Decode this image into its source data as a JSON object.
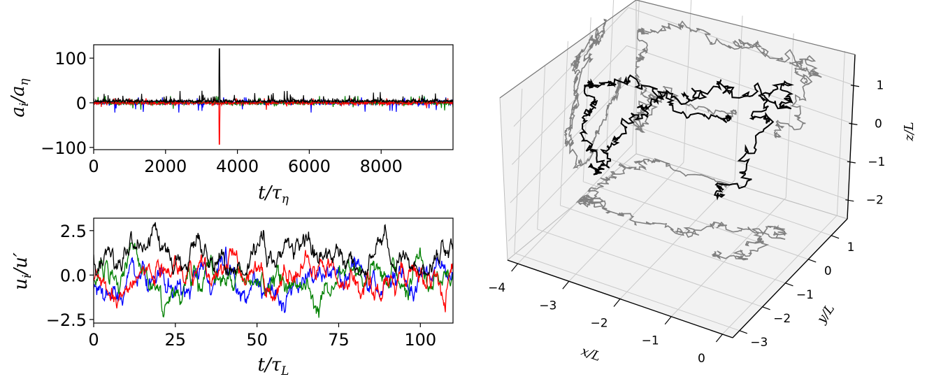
{
  "chart_data": [
    {
      "type": "line",
      "xlabel": "t/τη",
      "ylabel": "ai/aη",
      "xlim": [
        0,
        10000
      ],
      "ylim": [
        -105,
        130
      ],
      "xticks": [
        "0",
        "2000",
        "4000",
        "6000",
        "8000"
      ],
      "yticks": [
        "−100",
        "0",
        "100"
      ],
      "grid": false,
      "series": [
        {
          "color": "#0000ff",
          "peak_max": 12,
          "peak_min": -22
        },
        {
          "color": "#008000",
          "peak_max": 15,
          "peak_min": -45
        },
        {
          "color": "#ff0000",
          "peak_max": 10,
          "peak_min": -93
        },
        {
          "color": "#000000",
          "peak_max": 121,
          "peak_min": -2
        }
      ]
    },
    {
      "type": "line",
      "xlabel": "t/τL",
      "ylabel": "ui/u′",
      "xlim": [
        0,
        110
      ],
      "ylim": [
        -2.7,
        3.2
      ],
      "xticks": [
        "0",
        "25",
        "50",
        "75",
        "100"
      ],
      "yticks": [
        "−2.5",
        "0.0",
        "2.5"
      ],
      "grid": false,
      "series": [
        {
          "color": "#0000ff",
          "range": [
            -2.1,
            2.2
          ]
        },
        {
          "color": "#008000",
          "range": [
            -2.4,
            1.8
          ]
        },
        {
          "color": "#ff0000",
          "range": [
            -2.1,
            2.2
          ]
        },
        {
          "color": "#000000",
          "range": [
            0.0,
            3.0
          ]
        }
      ]
    },
    {
      "type": "line3d",
      "xlabel": "x/L",
      "ylabel": "y/L",
      "zlabel": "z/L",
      "xlim": [
        -4.2,
        0.2
      ],
      "ylim": [
        -3.3,
        1.7
      ],
      "zlim": [
        -2.5,
        1.8
      ],
      "xticks": [
        "−4",
        "−3",
        "−2",
        "−1",
        "0"
      ],
      "yticks": [
        "−3",
        "−2",
        "−1",
        "0",
        "1"
      ],
      "zticks": [
        "−2",
        "−1",
        "0",
        "1"
      ],
      "grid": true,
      "series": [
        {
          "color": "#000000",
          "role": "trajectory"
        },
        {
          "color": "#808080",
          "role": "projections"
        }
      ]
    }
  ]
}
